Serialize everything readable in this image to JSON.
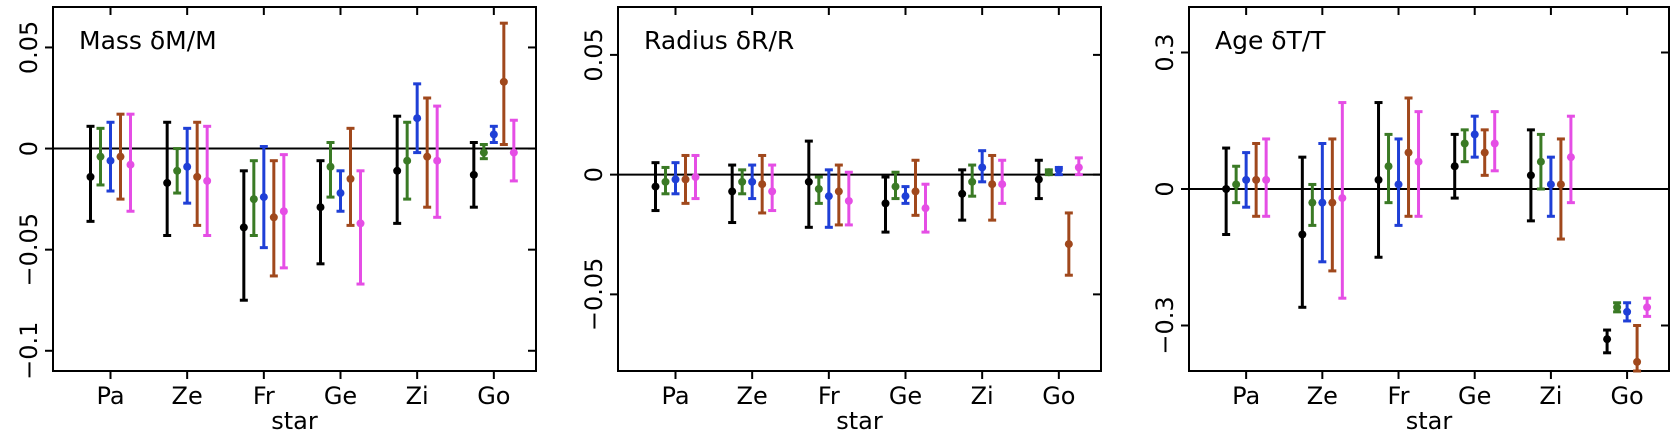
{
  "chart_data": [
    {
      "type": "scatter",
      "title": "Mass δM/M",
      "xlabel": "star",
      "ylabel": "",
      "categories": [
        "Pa",
        "Ze",
        "Fr",
        "Ge",
        "Zi",
        "Go"
      ],
      "ylim": [
        -0.11,
        0.07
      ],
      "yticks": [
        0.05,
        0,
        -0.05,
        -0.1
      ],
      "ytick_labels": [
        "0.05",
        "0",
        "−0.05",
        "−0.1"
      ],
      "reference_line": 0,
      "grid": false,
      "series": [
        {
          "color": "#000000",
          "values": [
            -0.014,
            -0.017,
            -0.039,
            -0.029,
            -0.011,
            -0.013
          ],
          "lower": [
            -0.036,
            -0.043,
            -0.075,
            -0.057,
            -0.037,
            -0.029
          ],
          "upper": [
            0.011,
            0.013,
            -0.011,
            -0.006,
            0.016,
            0.003
          ]
        },
        {
          "color": "#3a7a25",
          "values": [
            -0.004,
            -0.011,
            -0.025,
            -0.009,
            -0.006,
            -0.002
          ],
          "lower": [
            -0.018,
            -0.022,
            -0.043,
            -0.024,
            -0.025,
            -0.005
          ],
          "upper": [
            0.01,
            0.0,
            -0.006,
            0.003,
            0.013,
            0.002
          ]
        },
        {
          "color": "#1f3fd6",
          "values": [
            -0.006,
            -0.009,
            -0.024,
            -0.022,
            0.015,
            0.007
          ],
          "lower": [
            -0.021,
            -0.027,
            -0.049,
            -0.031,
            -0.002,
            0.003
          ],
          "upper": [
            0.013,
            0.01,
            0.001,
            -0.011,
            0.032,
            0.011
          ]
        },
        {
          "color": "#a0481c",
          "values": [
            -0.004,
            -0.014,
            -0.034,
            -0.015,
            -0.004,
            0.033
          ],
          "lower": [
            -0.025,
            -0.038,
            -0.063,
            -0.038,
            -0.029,
            0.002
          ],
          "upper": [
            0.017,
            0.013,
            -0.006,
            0.01,
            0.025,
            0.062
          ]
        },
        {
          "color": "#e54ee5",
          "values": [
            -0.008,
            -0.016,
            -0.031,
            -0.037,
            -0.006,
            -0.002
          ],
          "lower": [
            -0.031,
            -0.043,
            -0.059,
            -0.067,
            -0.034,
            -0.016
          ],
          "upper": [
            0.017,
            0.011,
            -0.003,
            -0.011,
            0.021,
            0.014
          ]
        }
      ]
    },
    {
      "type": "scatter",
      "title": "Radius δR/R",
      "xlabel": "star",
      "ylabel": "",
      "categories": [
        "Pa",
        "Ze",
        "Fr",
        "Ge",
        "Zi",
        "Go"
      ],
      "ylim": [
        -0.082,
        0.07
      ],
      "yticks": [
        0.05,
        0,
        -0.05
      ],
      "ytick_labels": [
        "0.05",
        "0",
        "−0.05"
      ],
      "reference_line": 0,
      "grid": false,
      "series": [
        {
          "color": "#000000",
          "values": [
            -0.005,
            -0.007,
            -0.003,
            -0.012,
            -0.008,
            -0.002
          ],
          "lower": [
            -0.015,
            -0.02,
            -0.022,
            -0.024,
            -0.019,
            -0.01
          ],
          "upper": [
            0.005,
            0.004,
            0.014,
            -0.001,
            0.002,
            0.006
          ]
        },
        {
          "color": "#3a7a25",
          "values": [
            -0.003,
            -0.003,
            -0.006,
            -0.005,
            -0.003,
            0.001
          ],
          "lower": [
            -0.008,
            -0.008,
            -0.012,
            -0.01,
            -0.009,
            0.0
          ],
          "upper": [
            0.003,
            0.002,
            -0.001,
            0.001,
            0.004,
            0.002
          ]
        },
        {
          "color": "#1f3fd6",
          "values": [
            -0.002,
            -0.003,
            -0.009,
            -0.009,
            0.003,
            0.002
          ],
          "lower": [
            -0.008,
            -0.01,
            -0.022,
            -0.012,
            -0.003,
            0.0
          ],
          "upper": [
            0.005,
            0.004,
            0.002,
            -0.005,
            0.01,
            0.003
          ]
        },
        {
          "color": "#a0481c",
          "values": [
            -0.002,
            -0.004,
            -0.007,
            -0.007,
            -0.004,
            -0.029
          ],
          "lower": [
            -0.012,
            -0.016,
            -0.021,
            -0.017,
            -0.019,
            -0.042
          ],
          "upper": [
            0.008,
            0.008,
            0.004,
            0.006,
            0.008,
            -0.016
          ]
        },
        {
          "color": "#e54ee5",
          "values": [
            -0.001,
            -0.007,
            -0.011,
            -0.014,
            -0.004,
            0.003
          ],
          "lower": [
            -0.01,
            -0.015,
            -0.021,
            -0.024,
            -0.012,
            0.0
          ],
          "upper": [
            0.008,
            0.004,
            0.001,
            -0.004,
            0.006,
            0.007
          ]
        }
      ]
    },
    {
      "type": "scatter",
      "title": "Age δT/T",
      "xlabel": "star",
      "ylabel": "",
      "categories": [
        "Pa",
        "Ze",
        "Fr",
        "Ge",
        "Zi",
        "Go"
      ],
      "ylim": [
        -0.4,
        0.4
      ],
      "yticks": [
        0.3,
        0,
        -0.3
      ],
      "ytick_labels": [
        "0.3",
        "0",
        "−0.3"
      ],
      "reference_line": 0,
      "grid": false,
      "series": [
        {
          "color": "#000000",
          "values": [
            0.0,
            -0.1,
            0.02,
            0.05,
            0.03,
            -0.33
          ],
          "lower": [
            -0.1,
            -0.26,
            -0.15,
            -0.02,
            -0.07,
            -0.36
          ],
          "upper": [
            0.09,
            0.07,
            0.19,
            0.12,
            0.13,
            -0.31
          ]
        },
        {
          "color": "#3a7a25",
          "values": [
            0.01,
            -0.03,
            0.05,
            0.1,
            0.06,
            -0.26
          ],
          "lower": [
            -0.03,
            -0.08,
            -0.03,
            0.06,
            0.0,
            -0.27
          ],
          "upper": [
            0.05,
            0.01,
            0.12,
            0.13,
            0.12,
            -0.25
          ]
        },
        {
          "color": "#1f3fd6",
          "values": [
            0.02,
            -0.03,
            0.01,
            0.12,
            0.01,
            -0.27
          ],
          "lower": [
            -0.04,
            -0.16,
            -0.08,
            0.07,
            -0.06,
            -0.29
          ],
          "upper": [
            0.08,
            0.1,
            0.11,
            0.16,
            0.07,
            -0.25
          ]
        },
        {
          "color": "#a0481c",
          "values": [
            0.02,
            -0.03,
            0.08,
            0.08,
            0.01,
            -0.38
          ],
          "lower": [
            -0.06,
            -0.18,
            -0.06,
            0.03,
            -0.11,
            -0.4
          ],
          "upper": [
            0.1,
            0.11,
            0.2,
            0.13,
            0.11,
            -0.3
          ]
        },
        {
          "color": "#e54ee5",
          "values": [
            0.02,
            -0.02,
            0.06,
            0.1,
            0.07,
            -0.26
          ],
          "lower": [
            -0.06,
            -0.24,
            -0.06,
            0.04,
            -0.03,
            -0.28
          ],
          "upper": [
            0.11,
            0.19,
            0.17,
            0.17,
            0.16,
            -0.24
          ]
        }
      ]
    }
  ]
}
